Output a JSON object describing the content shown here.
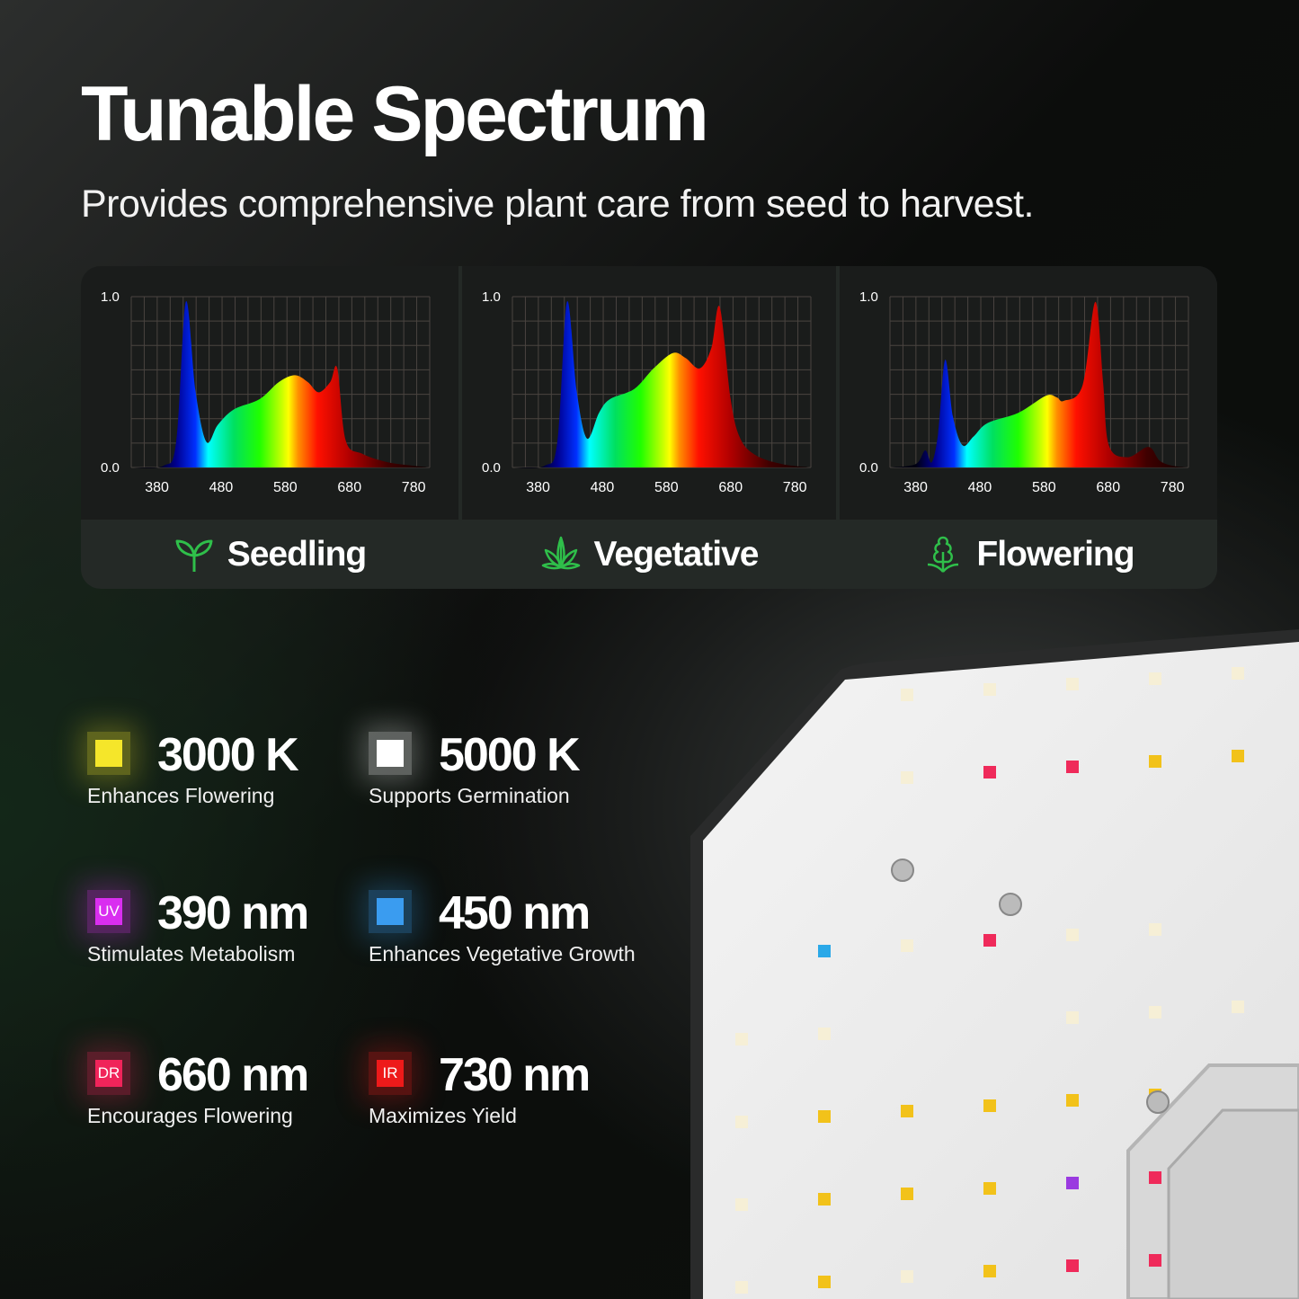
{
  "title": "Tunable Spectrum",
  "subtitle": "Provides comprehensive plant care from seed to harvest.",
  "chart_data": [
    {
      "type": "area",
      "name": "Seedling",
      "icon": "sprout-icon",
      "xlim": [
        340,
        805
      ],
      "ylim": [
        0,
        1
      ],
      "x_ticks": [
        "380",
        "480",
        "580",
        "680",
        "780"
      ],
      "y_ticks": [
        "0.0",
        "1.0"
      ],
      "grid": true,
      "points": [
        [
          340,
          0
        ],
        [
          390,
          0.01
        ],
        [
          410,
          0.15
        ],
        [
          425,
          0.97
        ],
        [
          440,
          0.45
        ],
        [
          457,
          0.15
        ],
        [
          475,
          0.25
        ],
        [
          500,
          0.34
        ],
        [
          540,
          0.4
        ],
        [
          570,
          0.5
        ],
        [
          595,
          0.54
        ],
        [
          615,
          0.5
        ],
        [
          632,
          0.44
        ],
        [
          650,
          0.5
        ],
        [
          661,
          0.58
        ],
        [
          674,
          0.16
        ],
        [
          700,
          0.08
        ],
        [
          740,
          0.03
        ],
        [
          780,
          0.01
        ],
        [
          805,
          0
        ]
      ]
    },
    {
      "type": "area",
      "name": "Vegetative",
      "icon": "cannabis-leaf-icon",
      "xlim": [
        340,
        805
      ],
      "ylim": [
        0,
        1
      ],
      "x_ticks": [
        "380",
        "480",
        "580",
        "680",
        "780"
      ],
      "y_ticks": [
        "0.0",
        "1.0"
      ],
      "grid": true,
      "points": [
        [
          340,
          0
        ],
        [
          390,
          0.01
        ],
        [
          410,
          0.15
        ],
        [
          425,
          0.97
        ],
        [
          440,
          0.45
        ],
        [
          456,
          0.17
        ],
        [
          475,
          0.32
        ],
        [
          492,
          0.4
        ],
        [
          530,
          0.46
        ],
        [
          560,
          0.58
        ],
        [
          590,
          0.67
        ],
        [
          610,
          0.64
        ],
        [
          632,
          0.58
        ],
        [
          650,
          0.7
        ],
        [
          663,
          0.94
        ],
        [
          680,
          0.4
        ],
        [
          695,
          0.17
        ],
        [
          720,
          0.07
        ],
        [
          760,
          0.02
        ],
        [
          805,
          0
        ]
      ]
    },
    {
      "type": "area",
      "name": "Flowering",
      "icon": "flowering-plant-icon",
      "xlim": [
        340,
        805
      ],
      "ylim": [
        0,
        1
      ],
      "x_ticks": [
        "380",
        "480",
        "580",
        "680",
        "780"
      ],
      "y_ticks": [
        "0.0",
        "1.0"
      ],
      "grid": true,
      "points": [
        [
          340,
          0
        ],
        [
          380,
          0.02
        ],
        [
          395,
          0.1
        ],
        [
          405,
          0.03
        ],
        [
          415,
          0.2
        ],
        [
          426,
          0.63
        ],
        [
          438,
          0.3
        ],
        [
          453,
          0.13
        ],
        [
          470,
          0.18
        ],
        [
          492,
          0.26
        ],
        [
          540,
          0.32
        ],
        [
          583,
          0.42
        ],
        [
          600,
          0.41
        ],
        [
          611,
          0.39
        ],
        [
          640,
          0.48
        ],
        [
          660,
          0.97
        ],
        [
          672,
          0.5
        ],
        [
          681,
          0.13
        ],
        [
          710,
          0.06
        ],
        [
          743,
          0.12
        ],
        [
          760,
          0.04
        ],
        [
          780,
          0.01
        ],
        [
          805,
          0
        ]
      ]
    }
  ],
  "specs": [
    {
      "value": "3000 K",
      "desc": "Enhances Flowering",
      "badge": "",
      "color": "#f5e62a"
    },
    {
      "value": "5000 K",
      "desc": "Supports Germination",
      "badge": "",
      "color": "#ffffff"
    },
    {
      "value": "390 nm",
      "desc": "Stimulates Metabolism",
      "badge": "UV",
      "color": "#d92ef0"
    },
    {
      "value": "450 nm",
      "desc": "Enhances Vegetative Growth",
      "badge": "",
      "color": "#3a9cf0"
    },
    {
      "value": "660 nm",
      "desc": "Encourages Flowering",
      "badge": "DR",
      "color": "#f0245a"
    },
    {
      "value": "730 nm",
      "desc": "Maximizes Yield",
      "badge": "IR",
      "color": "#ee1a1a"
    }
  ],
  "accent": "#2fbf4a"
}
